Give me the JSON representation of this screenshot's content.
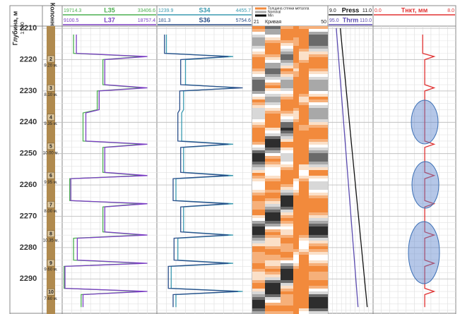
{
  "chart_data": {
    "type": "well-log",
    "y_label": "Глубина, м",
    "scale_label": "1:500",
    "ylim": [
      2209.3,
      2301.2
    ],
    "yticks": [
      2210,
      2220,
      2230,
      2240,
      2250,
      2260,
      2270,
      2280,
      2290
    ],
    "grid": true,
    "depth": [
      2212,
      2218,
      2219,
      2220,
      2228,
      2229,
      2230,
      2236,
      2237,
      2246,
      2247,
      2248,
      2256,
      2257,
      2258,
      2265,
      2266,
      2267,
      2275,
      2276,
      2277,
      2284,
      2285,
      2286,
      2293,
      2294,
      2295,
      2299
    ],
    "tracks": [
      {
        "kind": "columns",
        "title": "Колонны",
        "columns": [
          {
            "number": "2",
            "length": "9.20 м."
          },
          {
            "number": "3",
            "length": "8.10 м."
          },
          {
            "number": "4",
            "length": "9.35 м."
          },
          {
            "number": "5",
            "length": "10.00 м."
          },
          {
            "number": "6",
            "length": "9.95 м."
          },
          {
            "number": "7",
            "length": "8.00 м."
          },
          {
            "number": "8",
            "length": "10.35 м."
          },
          {
            "number": "9",
            "length": "9.60 м."
          },
          {
            "number": "10",
            "length": "7.60 м."
          }
        ]
      },
      {
        "kind": "curves",
        "series": [
          {
            "name": "L35",
            "color": "#4caf50",
            "xlim": [
              19714.3,
              33406.6
            ],
            "xticks": [
              19714.3,
              33406.6
            ],
            "values": [
              21357,
              21357,
              31353,
              25602,
              25602,
              31353,
              24780,
              24780,
              22727,
              22727,
              31353,
              25602,
              25602,
              31353,
              20810,
              20810,
              31353,
              25602,
              25602,
              31353,
              21357,
              21357,
              31353,
              19988,
              19988,
              31353,
              22453,
              22453
            ]
          },
          {
            "name": "L37",
            "color": "#7b3fc4",
            "xlim": [
              9100.5,
              18757.4
            ],
            "xticks": [
              9100.5,
              18757.4
            ],
            "values": [
              10549,
              10549,
              17792,
              13446,
              13446,
              17792,
              12867,
              12867,
              11515,
              11515,
              17792,
              13446,
              13446,
              17792,
              9970,
              9970,
              17792,
              13446,
              13446,
              17792,
              10646,
              10646,
              17792,
              9390,
              9390,
              17792,
              11225,
              11225
            ]
          }
        ]
      },
      {
        "kind": "curves",
        "series": [
          {
            "name": "S34",
            "color": "#3a9ab0",
            "xlim": [
              1239.9,
              4455.7
            ],
            "xticks": [
              1239.9,
              4455.7
            ],
            "values": [
              1561.5,
              1561.5,
              3812.7,
              2204.7,
              2204.7,
              3973.5,
              2140.4,
              2140.4,
              2076.1,
              2076.1,
              3812.7,
              2140.4,
              2140.4,
              3812.7,
              1883.1,
              1883.1,
              3812.7,
              2140.4,
              2140.4,
              3812.7,
              1947.4,
              1947.4,
              3812.7,
              1722.3,
              1722.3,
              4134.3,
              1883.1,
              1883.1
            ]
          },
          {
            "name": "S36",
            "color": "#2a4f8a",
            "xlim": [
              181.3,
              5754.6
            ],
            "xticks": [
              181.3,
              5754.6
            ],
            "values": [
              627.2,
              627.2,
              4361.3,
              1574.6,
              1574.6,
              5197.3,
              1518.9,
              1518.9,
              1407.4,
              1407.4,
              4361.3,
              1574.6,
              1574.6,
              4361.3,
              1128.8,
              1128.8,
              4361.3,
              1574.6,
              1574.6,
              4361.3,
              1184.5,
              1184.5,
              4361.3,
              850.1,
              850.1,
              4918.6,
              1128.8,
              1128.8
            ]
          }
        ]
      },
      {
        "kind": "image",
        "title": "Кривая",
        "xlim": [
          21,
          50
        ],
        "xticks": [
          21,
          50
        ],
        "legend": [
          "Толщина стенки металла",
          "Nominal",
          "Min"
        ]
      },
      {
        "kind": "curves",
        "series": [
          {
            "name": "Press",
            "color": "#111111",
            "xlim": [
              9,
              11
            ],
            "xticks": [
              {
                "value": 9,
                "label": "9.0"
              },
              {
                "value": 11,
                "label": "11.0"
              }
            ],
            "depth": [
              2210,
              2299
            ],
            "values": [
              9.55,
              10.74
            ]
          },
          {
            "name": "Thrm",
            "color": "#5b4bb0",
            "xlim": [
              95,
              110
            ],
            "xticks": [
              {
                "value": 95,
                "label": "95.0"
              },
              {
                "value": 110,
                "label": "110.0"
              }
            ],
            "depth": [
              2210,
              2299
            ],
            "values": [
              97.8,
              105.0
            ]
          }
        ]
      },
      {
        "kind": "curves",
        "series": [
          {
            "name": "Тнкт, мм",
            "color": "#e03030",
            "xlim": [
              0,
              8
            ],
            "xticks": [
              {
                "value": 0,
                "label": "0.0"
              },
              {
                "value": 8,
                "label": "8.0"
              }
            ],
            "values": [
              4.8,
              4.8,
              5.9,
              5.0,
              5.0,
              5.9,
              5.0,
              5.0,
              5.0,
              5.0,
              5.9,
              5.0,
              5.0,
              5.9,
              5.0,
              5.0,
              5.9,
              5.0,
              5.0,
              5.9,
              5.0,
              5.0,
              5.9,
              5.0,
              5.0,
              5.9,
              5.0,
              5.0
            ]
          }
        ]
      }
    ]
  }
}
